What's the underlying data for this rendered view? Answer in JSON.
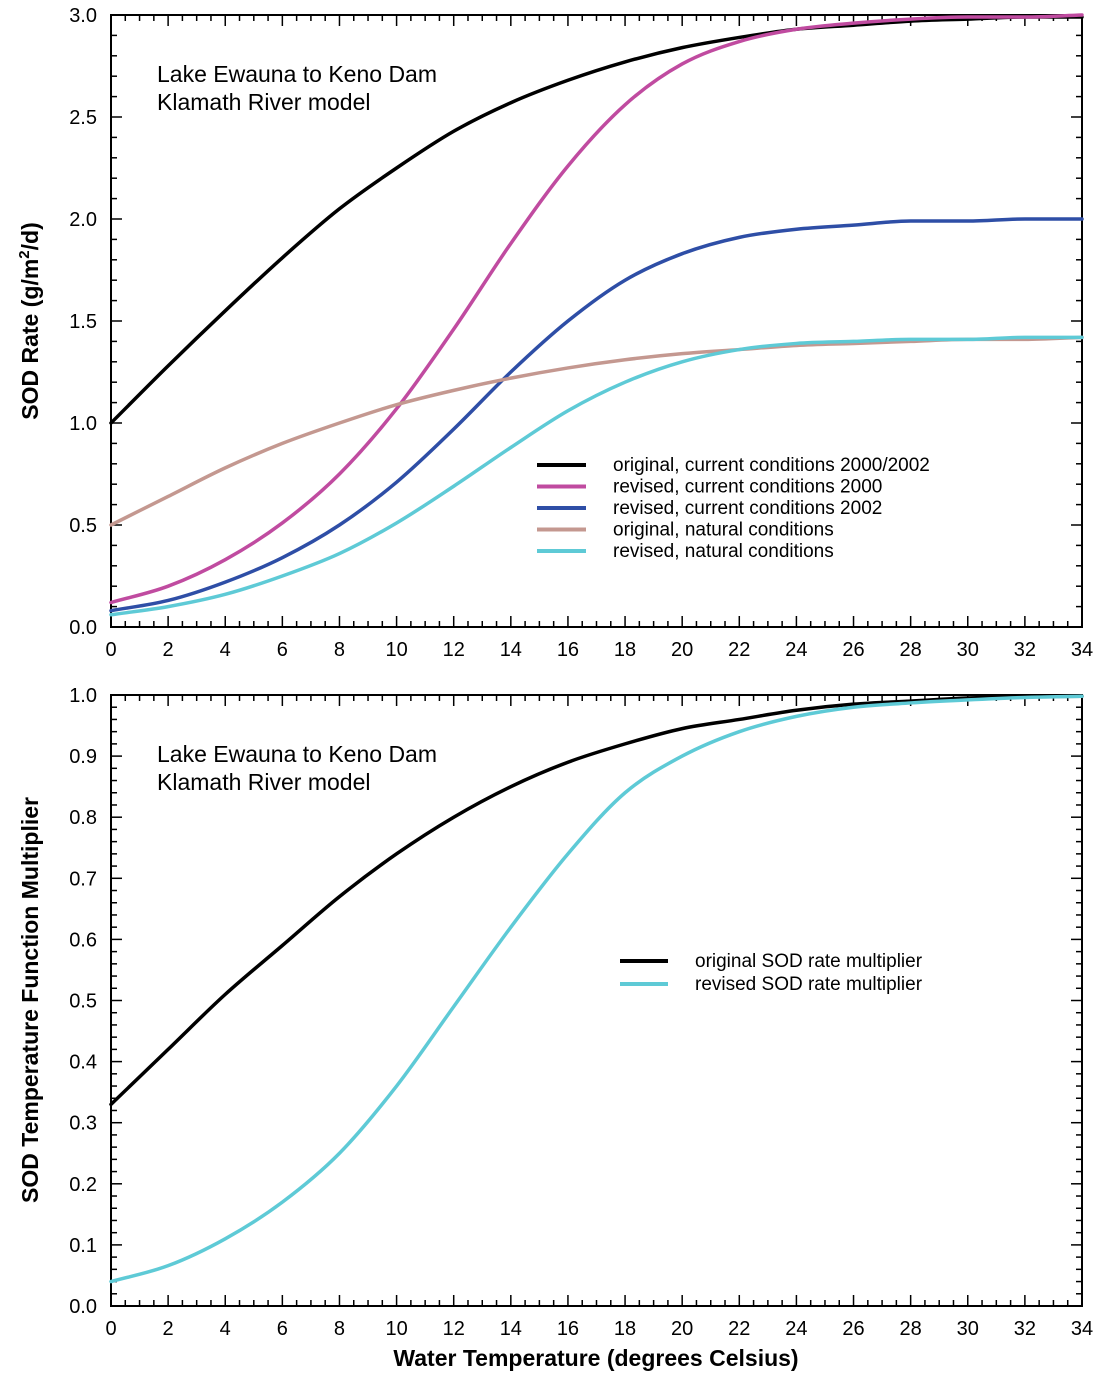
{
  "chart_data": [
    {
      "type": "line",
      "title": "",
      "annotation": [
        "Lake Ewauna to Keno Dam",
        "Klamath River model"
      ],
      "xlabel": "",
      "ylabel": "SOD Rate (g/m",
      "ylabel_sup": "2",
      "ylabel_tail": "/d)",
      "xlim": [
        0,
        34
      ],
      "ylim": [
        0,
        3.0
      ],
      "xticks": [
        "0",
        "2",
        "4",
        "6",
        "8",
        "10",
        "12",
        "14",
        "16",
        "18",
        "20",
        "22",
        "24",
        "26",
        "28",
        "30",
        "32",
        "34"
      ],
      "yticks": [
        "0.0",
        "0.5",
        "1.0",
        "1.5",
        "2.0",
        "2.5",
        "3.0"
      ],
      "legend_position": "lower-right",
      "x": [
        0,
        2,
        4,
        6,
        8,
        10,
        12,
        14,
        16,
        18,
        20,
        22,
        24,
        26,
        28,
        30,
        32,
        34
      ],
      "series": [
        {
          "name": "original, current conditions 2000/2002",
          "color": "#000000",
          "values": [
            1.0,
            1.28,
            1.55,
            1.81,
            2.05,
            2.25,
            2.43,
            2.57,
            2.68,
            2.77,
            2.84,
            2.89,
            2.93,
            2.95,
            2.97,
            2.98,
            2.99,
            2.99
          ]
        },
        {
          "name": "revised, current conditions 2000",
          "color": "#c04ba0",
          "values": [
            0.12,
            0.2,
            0.33,
            0.51,
            0.75,
            1.07,
            1.46,
            1.88,
            2.26,
            2.56,
            2.76,
            2.87,
            2.93,
            2.96,
            2.98,
            2.99,
            2.99,
            3.0
          ]
        },
        {
          "name": "revised, current conditions 2002",
          "color": "#2e4ea6",
          "values": [
            0.08,
            0.13,
            0.22,
            0.34,
            0.5,
            0.71,
            0.97,
            1.25,
            1.5,
            1.7,
            1.83,
            1.91,
            1.95,
            1.97,
            1.99,
            1.99,
            2.0,
            2.0
          ]
        },
        {
          "name": "original, natural conditions",
          "color": "#c49890",
          "values": [
            0.5,
            0.64,
            0.78,
            0.9,
            1.0,
            1.09,
            1.16,
            1.22,
            1.27,
            1.31,
            1.34,
            1.36,
            1.38,
            1.39,
            1.4,
            1.41,
            1.41,
            1.42
          ]
        },
        {
          "name": "revised, natural conditions",
          "color": "#5ecad6",
          "values": [
            0.06,
            0.1,
            0.16,
            0.25,
            0.36,
            0.51,
            0.69,
            0.88,
            1.06,
            1.2,
            1.3,
            1.36,
            1.39,
            1.4,
            1.41,
            1.41,
            1.42,
            1.42
          ]
        }
      ]
    },
    {
      "type": "line",
      "title": "",
      "annotation": [
        "Lake Ewauna to Keno Dam",
        "Klamath River model"
      ],
      "xlabel": "Water Temperature (degrees Celsius)",
      "ylabel": "SOD Temperature Function Multiplier",
      "xlim": [
        0,
        34
      ],
      "ylim": [
        0,
        1.0
      ],
      "xticks": [
        "0",
        "2",
        "4",
        "6",
        "8",
        "10",
        "12",
        "14",
        "16",
        "18",
        "20",
        "22",
        "24",
        "26",
        "28",
        "30",
        "32",
        "34"
      ],
      "yticks": [
        "0.0",
        "0.1",
        "0.2",
        "0.3",
        "0.4",
        "0.5",
        "0.6",
        "0.7",
        "0.8",
        "0.9",
        "1.0"
      ],
      "legend_position": "right",
      "x": [
        0,
        2,
        4,
        6,
        8,
        10,
        12,
        14,
        16,
        18,
        20,
        22,
        24,
        26,
        28,
        30,
        32,
        34
      ],
      "series": [
        {
          "name": "original SOD rate multiplier",
          "color": "#000000",
          "values": [
            0.33,
            0.42,
            0.51,
            0.59,
            0.67,
            0.74,
            0.8,
            0.85,
            0.89,
            0.92,
            0.945,
            0.96,
            0.975,
            0.985,
            0.99,
            0.995,
            0.997,
            0.998
          ]
        },
        {
          "name": "revised SOD rate multiplier",
          "color": "#5ecad6",
          "values": [
            0.04,
            0.066,
            0.11,
            0.17,
            0.25,
            0.36,
            0.49,
            0.62,
            0.74,
            0.84,
            0.9,
            0.94,
            0.965,
            0.98,
            0.987,
            0.992,
            0.996,
            0.998
          ]
        }
      ]
    }
  ]
}
